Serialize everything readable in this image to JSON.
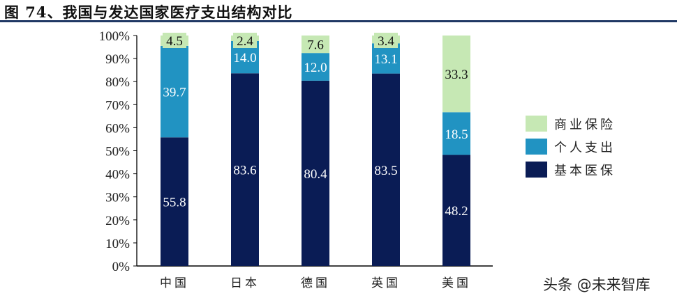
{
  "title": "图 74、我国与发达国家医疗支出结构对比",
  "watermark": "头条 @未来智库",
  "chart_data": {
    "type": "bar",
    "stacked": true,
    "title": "图 74、我国与发达国家医疗支出结构对比",
    "xlabel": "",
    "ylabel": "",
    "ylim": [
      0,
      100
    ],
    "yticks": [
      "0%",
      "10%",
      "20%",
      "30%",
      "40%",
      "50%",
      "60%",
      "70%",
      "80%",
      "90%",
      "100%"
    ],
    "categories": [
      "中国",
      "日本",
      "德国",
      "英国",
      "美国"
    ],
    "series": [
      {
        "name": "基本医保",
        "color": "#0a1c55",
        "label_color": "#ffffff",
        "values": [
          55.8,
          83.6,
          80.4,
          83.5,
          48.2
        ]
      },
      {
        "name": "个人支出",
        "color": "#2193c2",
        "label_color": "#ffffff",
        "values": [
          39.7,
          14.0,
          12.0,
          13.1,
          18.5
        ]
      },
      {
        "name": "商业保险",
        "color": "#c6e8b4",
        "label_color": "#111111",
        "values": [
          4.5,
          2.4,
          7.6,
          3.4,
          33.3
        ]
      }
    ],
    "legend": [
      "商业保险",
      "个人支出",
      "基本医保"
    ],
    "legend_position": "right"
  }
}
